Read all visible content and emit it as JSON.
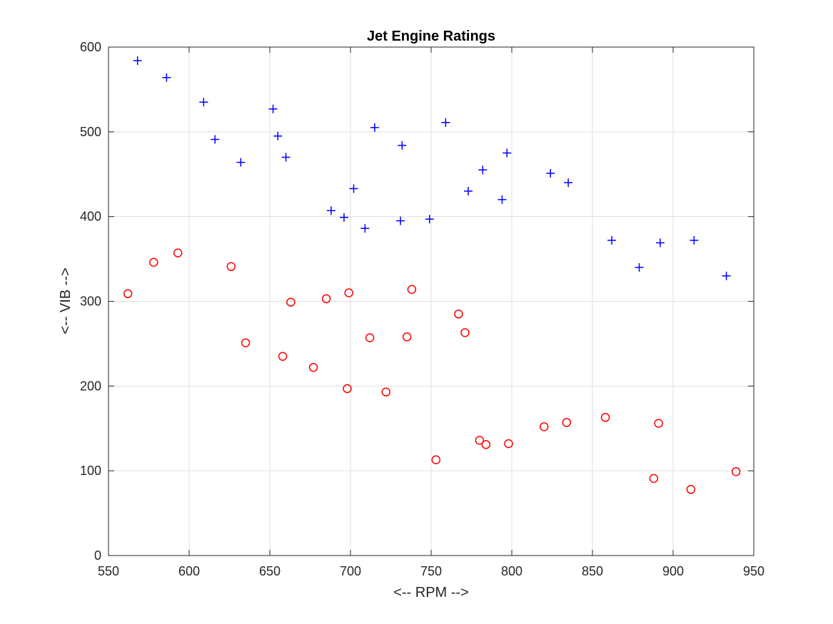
{
  "chart_data": {
    "type": "scatter",
    "title": "Jet Engine Ratings",
    "xlabel": "<-- RPM -->",
    "ylabel": "<-- VIB -->",
    "xlim": [
      550,
      950
    ],
    "ylim": [
      0,
      600
    ],
    "xticks": [
      550,
      600,
      650,
      700,
      750,
      800,
      850,
      900,
      950
    ],
    "yticks": [
      0,
      100,
      200,
      300,
      400,
      500,
      600
    ],
    "grid": true,
    "series": [
      {
        "marker": "plus",
        "color": "#0000ff",
        "points": [
          [
            568,
            584
          ],
          [
            586,
            564
          ],
          [
            609,
            535
          ],
          [
            616,
            491
          ],
          [
            632,
            464
          ],
          [
            652,
            527
          ],
          [
            655,
            495
          ],
          [
            660,
            470
          ],
          [
            688,
            407
          ],
          [
            696,
            399
          ],
          [
            702,
            433
          ],
          [
            709,
            386
          ],
          [
            715,
            505
          ],
          [
            731,
            395
          ],
          [
            732,
            484
          ],
          [
            749,
            397
          ],
          [
            759,
            511
          ],
          [
            773,
            430
          ],
          [
            782,
            455
          ],
          [
            794,
            420
          ],
          [
            797,
            475
          ],
          [
            824,
            451
          ],
          [
            835,
            440
          ],
          [
            862,
            372
          ],
          [
            879,
            340
          ],
          [
            892,
            369
          ],
          [
            913,
            372
          ],
          [
            933,
            330
          ]
        ]
      },
      {
        "marker": "circle",
        "color": "#ff0000",
        "points": [
          [
            562,
            309
          ],
          [
            578,
            346
          ],
          [
            593,
            357
          ],
          [
            626,
            341
          ],
          [
            635,
            251
          ],
          [
            658,
            235
          ],
          [
            663,
            299
          ],
          [
            677,
            222
          ],
          [
            685,
            303
          ],
          [
            698,
            197
          ],
          [
            699,
            310
          ],
          [
            712,
            257
          ],
          [
            722,
            193
          ],
          [
            735,
            258
          ],
          [
            738,
            314
          ],
          [
            753,
            113
          ],
          [
            767,
            285
          ],
          [
            771,
            263
          ],
          [
            780,
            136
          ],
          [
            784,
            131
          ],
          [
            798,
            132
          ],
          [
            820,
            152
          ],
          [
            834,
            157
          ],
          [
            858,
            163
          ],
          [
            888,
            91
          ],
          [
            891,
            156
          ],
          [
            911,
            78
          ],
          [
            939,
            99
          ]
        ]
      }
    ]
  }
}
